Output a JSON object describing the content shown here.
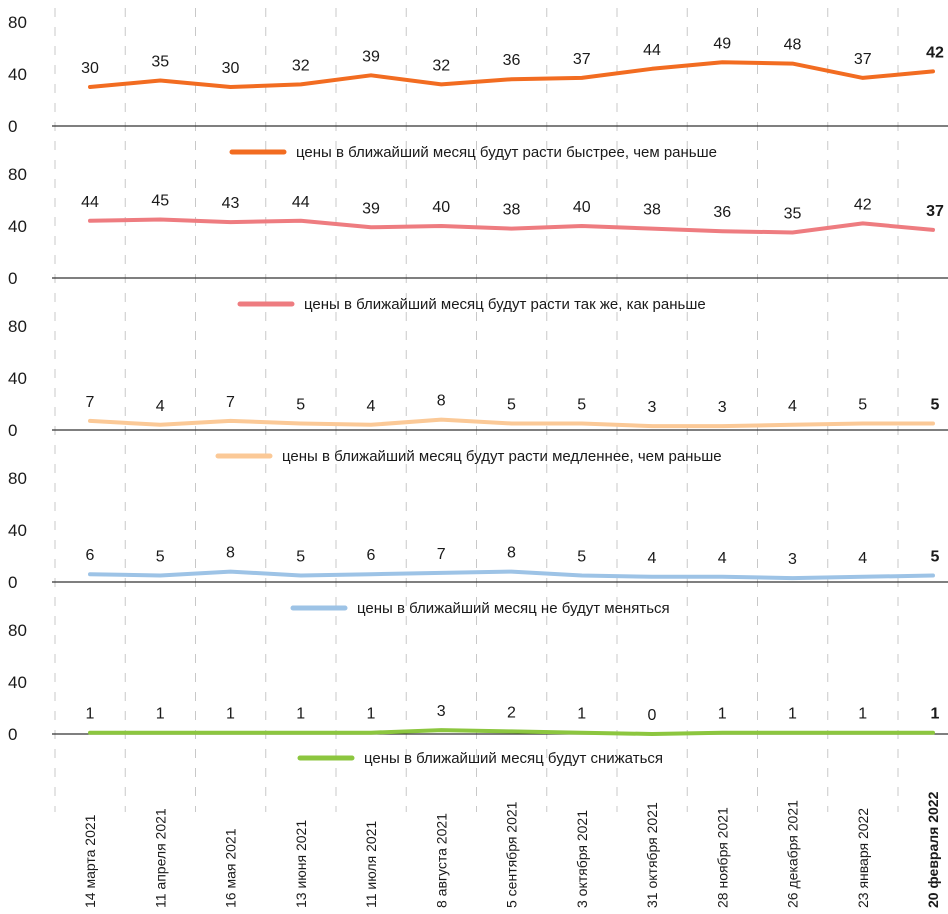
{
  "chart_data": {
    "type": "line",
    "x": [
      "14 марта 2021",
      "11 апреля 2021",
      "16 мая 2021",
      "13 июня 2021",
      "11 июля 2021",
      "8 августа 2021",
      "5 сентября 2021",
      "3 октября 2021",
      "31 октября 2021",
      "28 ноября 2021",
      "26 декабря 2021",
      "23 января 2022",
      "20 февраля 2022"
    ],
    "highlight_last": true,
    "ylim": [
      0,
      80
    ],
    "yticks": [
      "0",
      "40",
      "80"
    ],
    "grid": "vertical dashed",
    "series": [
      {
        "name": "цены в ближайший месяц будут расти быстрее, чем раньше",
        "color": "#f26c21",
        "values": [
          30,
          35,
          30,
          32,
          39,
          32,
          36,
          37,
          44,
          49,
          48,
          37,
          42
        ]
      },
      {
        "name": "цены в ближайший месяц будут расти так же, как раньше",
        "color": "#ee7c80",
        "values": [
          44,
          45,
          43,
          44,
          39,
          40,
          38,
          40,
          38,
          36,
          35,
          42,
          37
        ]
      },
      {
        "name": "цены в ближайший месяц будут расти медленнее, чем раньше",
        "color": "#fbc997",
        "values": [
          7,
          4,
          7,
          5,
          4,
          8,
          5,
          5,
          3,
          3,
          4,
          5,
          5
        ]
      },
      {
        "name": "цены в ближайший месяц не будут меняться",
        "color": "#9dc3e6",
        "values": [
          6,
          5,
          8,
          5,
          6,
          7,
          8,
          5,
          4,
          4,
          3,
          4,
          5
        ]
      },
      {
        "name": "цены в ближайший месяц будут снижаться",
        "color": "#8cc63f",
        "values": [
          1,
          1,
          1,
          1,
          1,
          3,
          2,
          1,
          0,
          1,
          1,
          1,
          1
        ]
      }
    ]
  }
}
